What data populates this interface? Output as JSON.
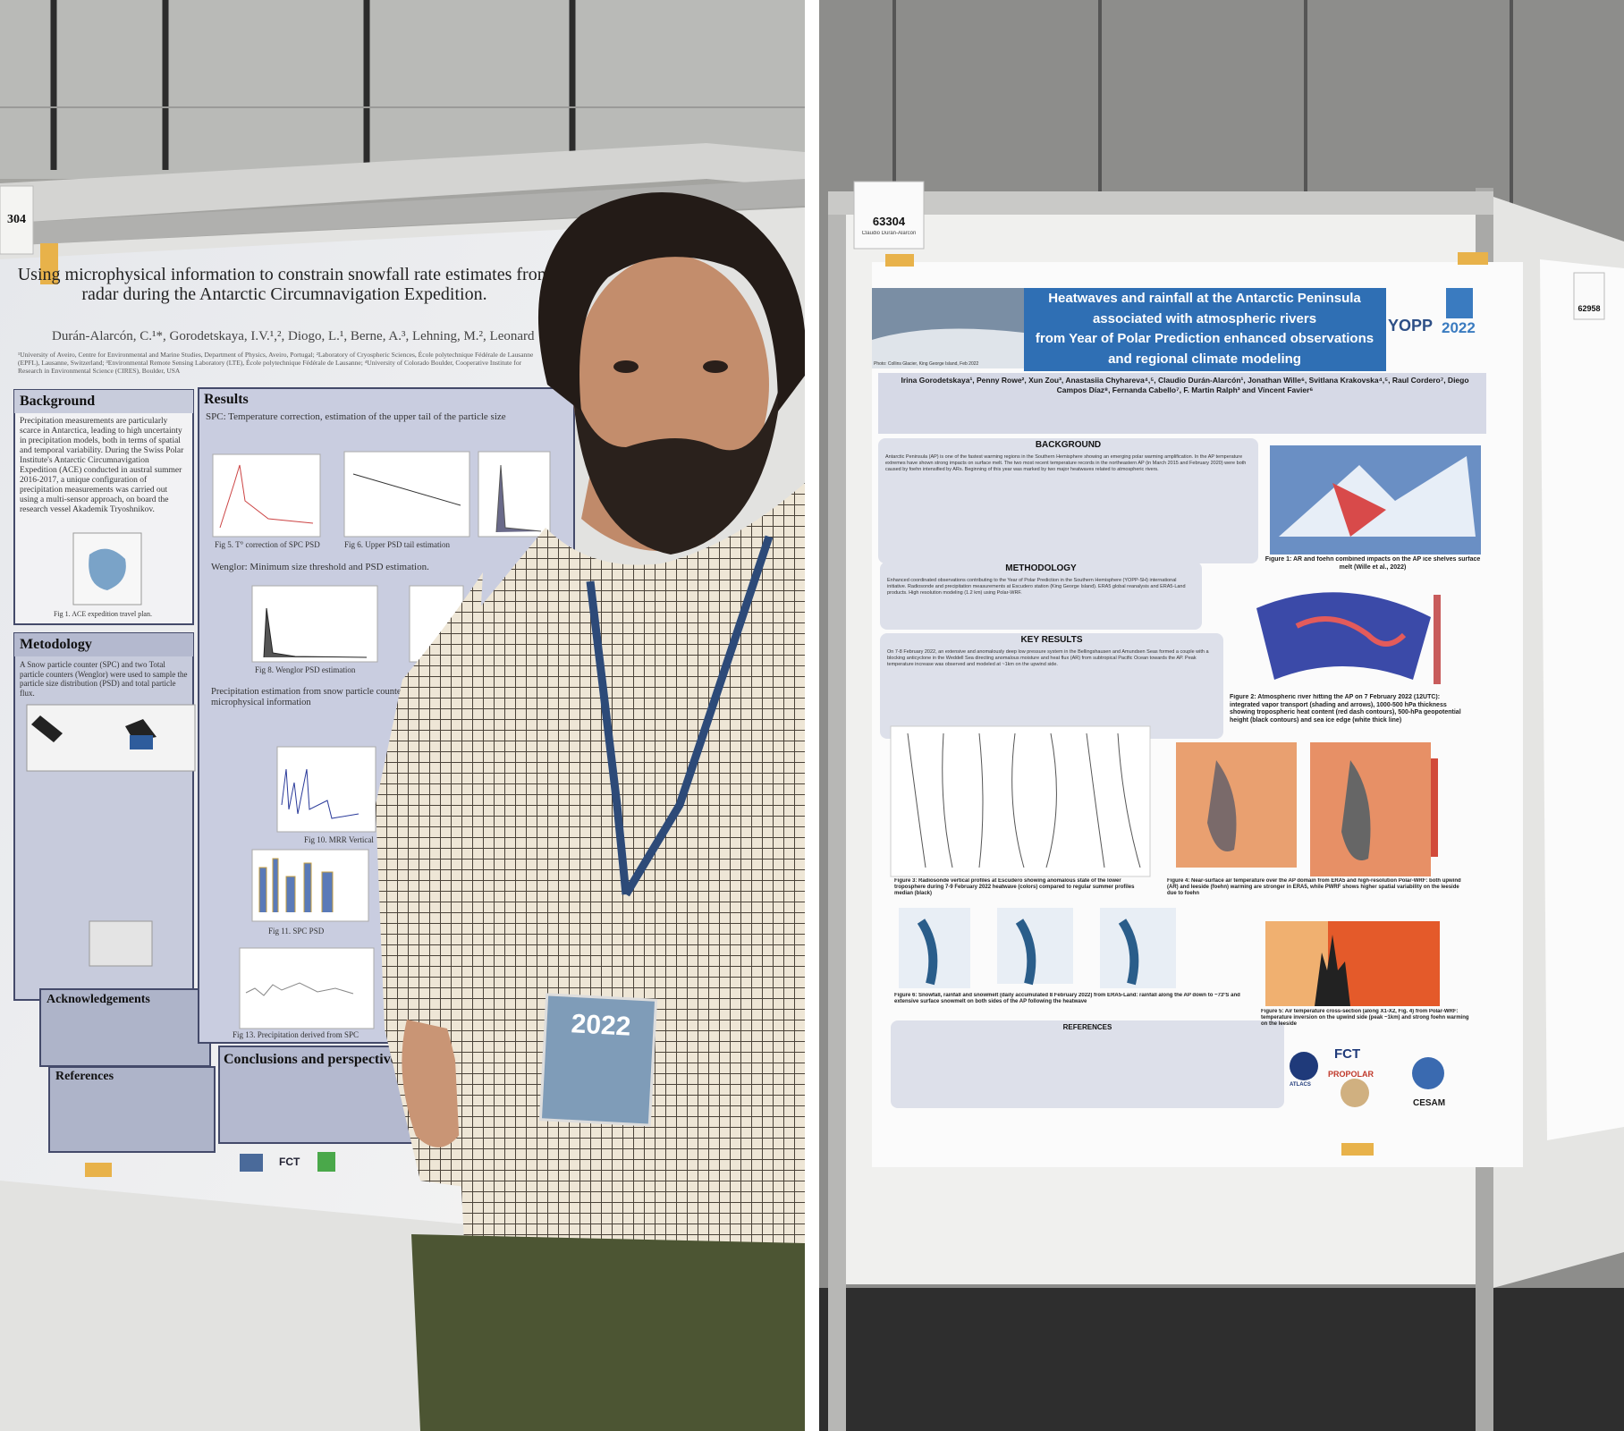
{
  "left_photo": {
    "board_label": "304",
    "poster": {
      "title": "Using microphysical information to constrain snowfall rate estimates from radar during the Antarctic Circumnavigation Expedition.",
      "authors": "Durán-Alarcón, C.¹*, Gorodetskaya, I.V.¹,², Diogo, L.¹, Berne, A.³, Lehning, M.², Leonard",
      "affiliations": "¹University of Aveiro, Centre for Environmental and Marine Studies, Department of Physics, Aveiro, Portugal; ²Laboratory of Cryospheric Sciences, École polytechnique Fédérale de Lausanne (EPFL), Lausanne, Switzerland; ³Environmental Remote Sensing Laboratory (LTE), École polytechnique Fédérale de Lausanne; ⁴University of Colorado Boulder, Cooperative Institute for Research in Environmental Science (CIRES), Boulder, USA",
      "background_heading": "Background",
      "background_text": "Precipitation measurements are particularly scarce in Antarctica, leading to high uncertainty in precipitation models, both in terms of spatial and temporal variability. During the Swiss Polar Institute's Antarctic Circumnavigation Expedition (ACE) conducted in austral summer 2016-2017, a unique configuration of precipitation measurements was carried out using a multi-sensor approach, on board the research vessel Akademik Tryoshnikov.",
      "methodology_heading": "Metodology",
      "methodology_text": "A Snow particle counter (SPC) and two Total particle counters (Wenglor) were used to sample the particle size distribution (PSD) and total particle flux.",
      "acknowledgements_heading": "Acknowledgements",
      "references_heading": "References",
      "results_heading": "Results",
      "results_subtitle": "SPC: Temperature correction, estimation of the upper tail of the particle size",
      "wenglor_subtitle": "Wenglor: Minimum size threshold and PSD estimation.",
      "precip_subtitle": "Precipitation estimation from snow particle counter microphysical information",
      "conclusions_heading": "Conclusions and perspectives",
      "captions": [
        "Fig 1. ACE expedition travel plan.",
        "Fig 5. T° correction of SPC PSD",
        "Fig 6. Upper PSD tail estimation",
        "Fig 8. Wenglor PSD estimation",
        "Fig 10. MRR Vertical",
        "Fig 11. SPC PSD",
        "Fig 13. Precipitation derived from SPC"
      ],
      "logo": "FCT"
    },
    "badge": "2022"
  },
  "right_photo": {
    "board_label": "63304",
    "board_name": "Claudio Durán-Alarcón",
    "poster": {
      "title_lines": [
        "Heatwaves and rainfall at the Antarctic Peninsula",
        "associated with atmospheric rivers",
        "from Year of Polar Prediction enhanced observations",
        "and regional climate modeling"
      ],
      "photo_credit": "Photo: Collins Glacier, King George Island, Feb 2022",
      "yopp": "YOPP",
      "conference": "2022",
      "authors": "Irina Gorodetskaya¹, Penny Rowe², Xun Zou³, Anastasiia Chyhareva⁴,⁵, Claudio Durán-Alarcón¹, Jonathan Wille⁶, Svitlana Krakovska⁴,⁵, Raul Cordero⁷, Diego Campos Díaz⁸, Fernanda Cabello⁷, F. Martin Ralph³ and Vincent Favier⁶",
      "background_heading": "BACKGROUND",
      "background_text": "Antarctic Peninsula (AP) is one of the fastest warming regions in the Southern Hemisphere showing an emerging polar warming amplification. In the AP temperature extremes have shown strong impacts on surface melt. The two most recent temperature records in the northeastern AP (in March 2015 and February 2020) were both caused by foehn intensified by ARs. Beginning of this year was marked by two major heatwaves related to atmospheric rivers.",
      "methodology_heading": "METHODOLOGY",
      "methodology_text": "Enhanced coordinated observations contributing to the Year of Polar Prediction in the Southern Hemisphere (YOPP-SH) international initiative. Radiosonde and precipitation measurements at Escudero station (King George Island). ERA5 global reanalysis and ERA5-Land products. High resolution modeling (1.2 km) using Polar-WRF.",
      "results_heading": "KEY RESULTS",
      "results_text": "On 7-8 February 2022, an extensive and anomalously deep low pressure system in the Bellingshausen and Amundsen Seas formed a couple with a blocking anticyclone in the Weddell Sea directing anomalous moisture and heat flux (AR) from subtropical Pacific Ocean towards the AP. Peak temperature increase was observed and modeled at ~1km on the upwind side.",
      "fig1_caption": "Figure 1: AR and foehn combined impacts on the AP ice shelves surface melt (Wille et al., 2022)",
      "fig2_caption": "Figure 2: Atmospheric river hitting the AP on 7 February 2022 (12UTC): integrated vapor transport (shading and arrows), 1000-500 hPa thickness showing tropospheric heat content (red dash contours), 500-hPa geopotential height (black contours) and sea ice edge (white thick line)",
      "fig3_caption": "Figure 3: Radiosonde vertical profiles at Escudero showing anomalous state of the lower troposphere during 7-9 February 2022 heatwave (colors) compared to regular summer profiles median (black)",
      "fig4_caption": "Figure 4: Near-surface air temperature over the AP domain from ERA5 and high-resolution Polar-WRF: both upwind (AR) and leeside (foehn) warming are stronger in ERA5, while PWRF shows higher spatial variability on the leeside due to foehn",
      "fig5_caption": "Figure 5: Air temperature cross-section (along X1-X2, Fig. 4) from Polar-WRF: temperature inversion on the upwind side (peak ~1km) and strong foehn warming on the leeside",
      "fig6_caption": "Figure 6: Snowfall, rainfall and snowmelt (daily accumulated 8 February 2022) from ERA5-Land: rainfall along the AP down to ~73ºS and extensive surface snowmelt on both sides of the AP following the heatwave",
      "references_heading": "REFERENCES",
      "logos": [
        "ATLACS",
        "PROPOLAR",
        "FCT",
        "CESAM"
      ]
    },
    "side_board_label": "62958"
  }
}
